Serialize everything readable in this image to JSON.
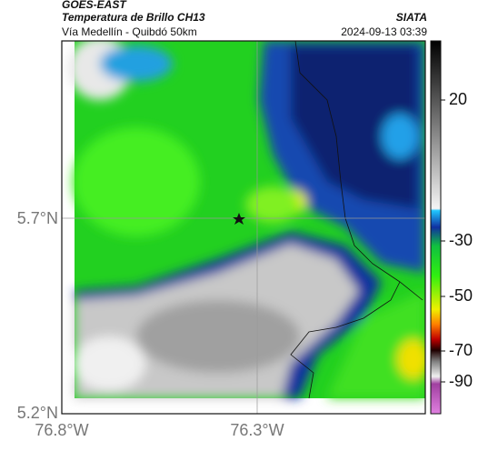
{
  "header": {
    "satellite": "GOES-EAST",
    "product": "Temperatura de Brillo CH13",
    "source": "SIATA",
    "route": "Vía Medellín - Quibdó 50km",
    "timestamp": "2024-09-13 03:39"
  },
  "lat_labels": [
    "5.7°N",
    "5.2°N"
  ],
  "lon_labels": [
    "76.8°W",
    "76.3°W"
  ],
  "colorbar_labels": [
    "20",
    "-30",
    "-50",
    "-70",
    "-90"
  ]
}
